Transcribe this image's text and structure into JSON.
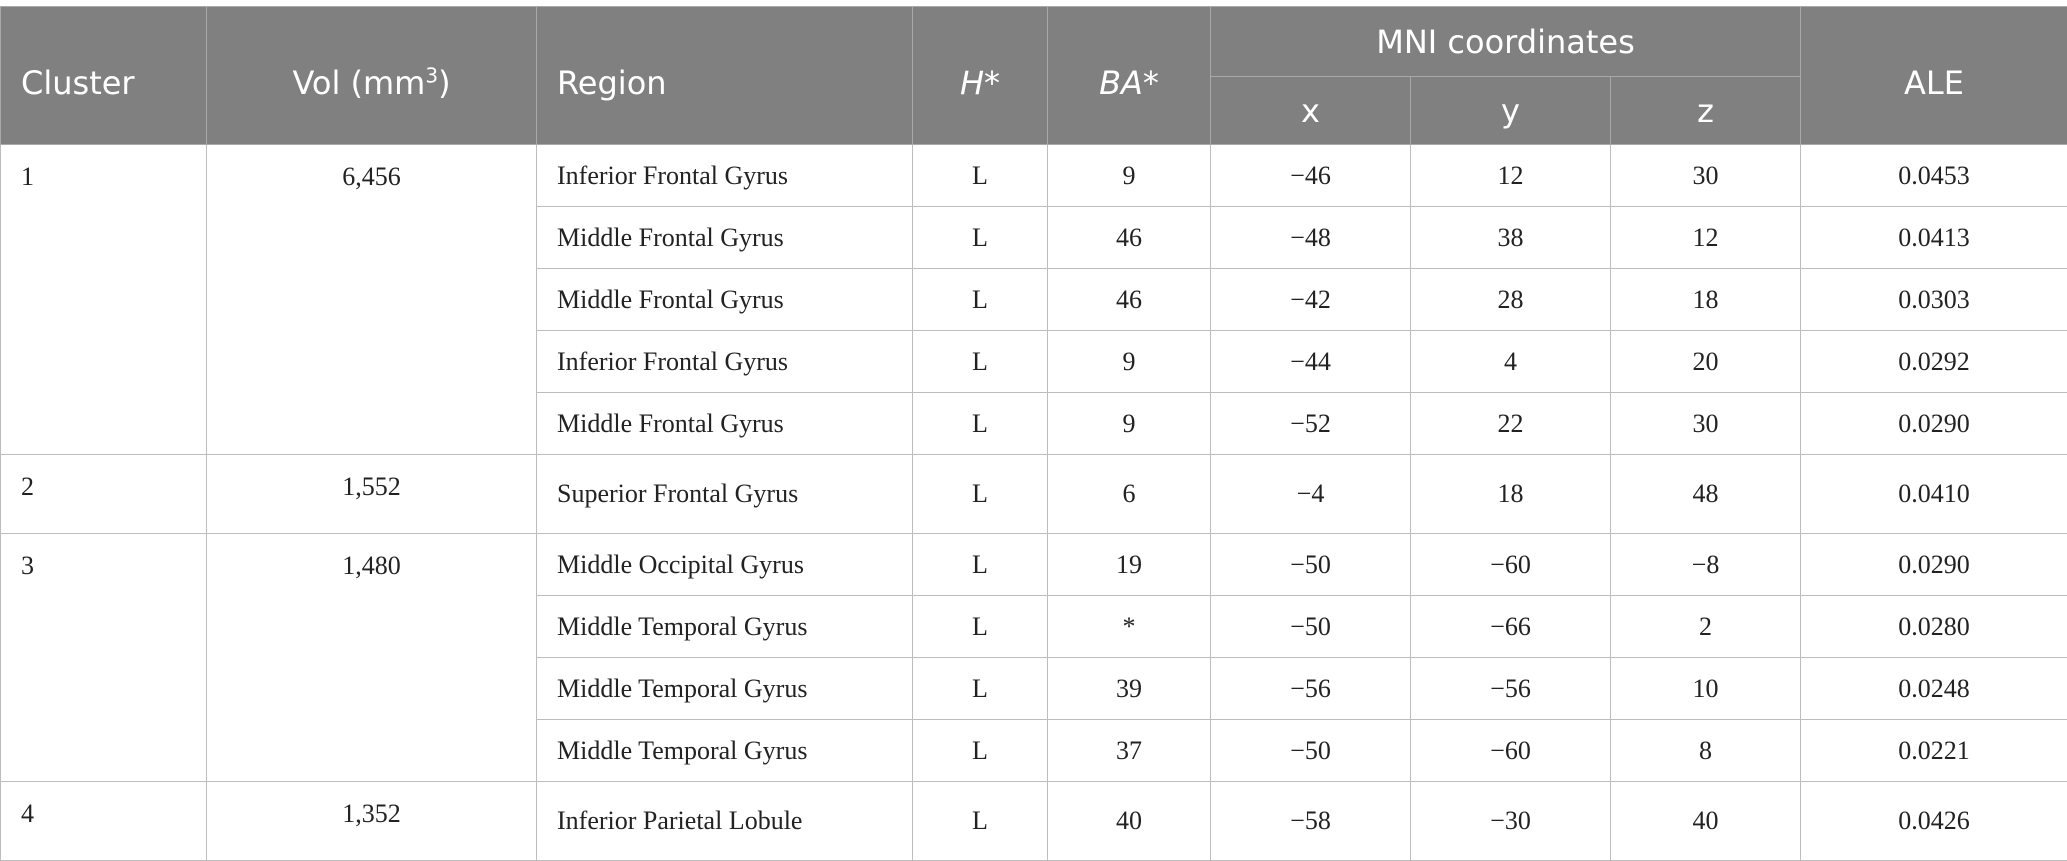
{
  "headers": {
    "cluster": "Cluster",
    "vol": "Vol (mm",
    "vol_sup": "3",
    "vol_close": ")",
    "region": "Region",
    "h": "H*",
    "ba": "BA*",
    "mni": "MNI coordinates",
    "x": "x",
    "y": "y",
    "z": "z",
    "ale": "ALE"
  },
  "clusters": [
    {
      "id": "1",
      "vol": "6,456",
      "rows": [
        {
          "region": "Inferior Frontal Gyrus",
          "h": "L",
          "ba": "9",
          "x": "−46",
          "y": "12",
          "z": "30",
          "ale": "0.0453"
        },
        {
          "region": "Middle Frontal Gyrus",
          "h": "L",
          "ba": "46",
          "x": "−48",
          "y": "38",
          "z": "12",
          "ale": "0.0413"
        },
        {
          "region": "Middle Frontal Gyrus",
          "h": "L",
          "ba": "46",
          "x": "−42",
          "y": "28",
          "z": "18",
          "ale": "0.0303"
        },
        {
          "region": "Inferior Frontal Gyrus",
          "h": "L",
          "ba": "9",
          "x": "−44",
          "y": "4",
          "z": "20",
          "ale": "0.0292"
        },
        {
          "region": "Middle Frontal Gyrus",
          "h": "L",
          "ba": "9",
          "x": "−52",
          "y": "22",
          "z": "30",
          "ale": "0.0290"
        }
      ]
    },
    {
      "id": "2",
      "vol": "1,552",
      "rows": [
        {
          "region": "Superior Frontal Gyrus",
          "h": "L",
          "ba": "6",
          "x": "−4",
          "y": "18",
          "z": "48",
          "ale": "0.0410"
        }
      ]
    },
    {
      "id": "3",
      "vol": "1,480",
      "rows": [
        {
          "region": "Middle Occipital Gyrus",
          "h": "L",
          "ba": "19",
          "x": "−50",
          "y": "−60",
          "z": "−8",
          "ale": "0.0290"
        },
        {
          "region": "Middle Temporal Gyrus",
          "h": "L",
          "ba": "*",
          "x": "−50",
          "y": "−66",
          "z": "2",
          "ale": "0.0280"
        },
        {
          "region": "Middle Temporal Gyrus",
          "h": "L",
          "ba": "39",
          "x": "−56",
          "y": "−56",
          "z": "10",
          "ale": "0.0248"
        },
        {
          "region": "Middle Temporal Gyrus",
          "h": "L",
          "ba": "37",
          "x": "−50",
          "y": "−60",
          "z": "8",
          "ale": "0.0221"
        }
      ]
    },
    {
      "id": "4",
      "vol": "1,352",
      "rows": [
        {
          "region": "Inferior Parietal Lobule",
          "h": "L",
          "ba": "40",
          "x": "−58",
          "y": "−30",
          "z": "40",
          "ale": "0.0426"
        }
      ]
    }
  ]
}
